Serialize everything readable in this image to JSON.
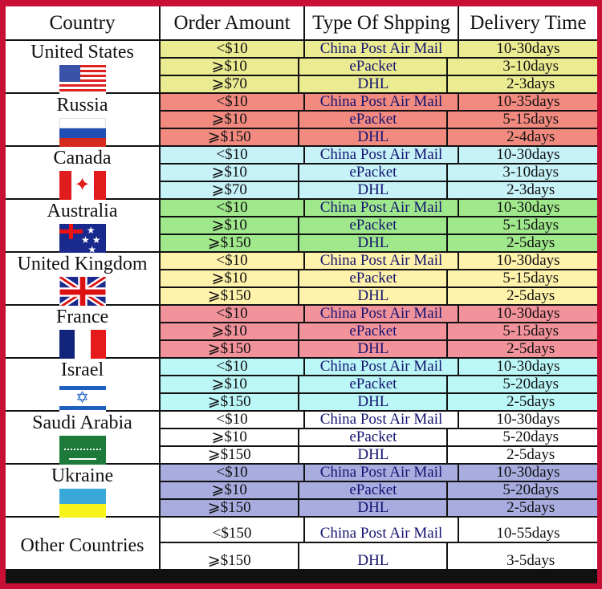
{
  "headers": [
    "Country",
    "Order Amount",
    "Type Of Shpping",
    "Delivery Time"
  ],
  "border_color": "#c80f36",
  "groups": [
    {
      "country": "United States",
      "flag": "us-flag",
      "color": "#ebeb92",
      "rows": [
        [
          "<$10",
          "China Post Air Mail",
          "10-30days"
        ],
        [
          "⩾$10",
          "ePacket",
          "3-10days"
        ],
        [
          "⩾$70",
          "DHL",
          "2-3days"
        ]
      ]
    },
    {
      "country": "Russia",
      "flag": "russia-flag",
      "color": "#f28a80",
      "rows": [
        [
          "<$10",
          "China Post Air Mail",
          "10-35days"
        ],
        [
          "⩾$10",
          "ePacket",
          "5-15days"
        ],
        [
          "⩾$150",
          "DHL",
          "2-4days"
        ]
      ]
    },
    {
      "country": "Canada",
      "flag": "canada-flag",
      "color": "#c6f2f8",
      "rows": [
        [
          "<$10",
          "China Post Air Mail",
          "10-30days"
        ],
        [
          "⩾$10",
          "ePacket",
          "3-10days"
        ],
        [
          "⩾$70",
          "DHL",
          "2-3days"
        ]
      ]
    },
    {
      "country": "Australia",
      "flag": "australia-flag",
      "color": "#a0e88c",
      "rows": [
        [
          "<$10",
          "China Post Air Mail",
          "10-30days"
        ],
        [
          "⩾$10",
          "ePacket",
          "5-15days"
        ],
        [
          "⩾$150",
          "DHL",
          "2-5days"
        ]
      ]
    },
    {
      "country": "United Kingdom",
      "flag": "uk-flag",
      "color": "#fff2aa",
      "rows": [
        [
          "<$10",
          "China Post Air Mail",
          "10-30days"
        ],
        [
          "⩾$10",
          "ePacket",
          "5-15days"
        ],
        [
          "⩾$150",
          "DHL",
          "2-5days"
        ]
      ]
    },
    {
      "country": "France",
      "flag": "france-flag",
      "color": "#f2929b",
      "rows": [
        [
          "<$10",
          "China Post Air Mail",
          "10-30days"
        ],
        [
          "⩾$10",
          "ePacket",
          "5-15days"
        ],
        [
          "⩾$150",
          "DHL",
          "2-5days"
        ]
      ]
    },
    {
      "country": "Israel",
      "flag": "israel-flag",
      "color": "#bbf7f7",
      "rows": [
        [
          "<$10",
          "China Post Air Mail",
          "10-30days"
        ],
        [
          "⩾$10",
          "ePacket",
          "5-20days"
        ],
        [
          "⩾$150",
          "DHL",
          "2-5days"
        ]
      ]
    },
    {
      "country": "Saudi Arabia",
      "flag": "saudi-arabia-flag",
      "color": "#ffffff",
      "rows": [
        [
          "<$10",
          "China Post Air Mail",
          "10-30days"
        ],
        [
          "⩾$10",
          "ePacket",
          "5-20days"
        ],
        [
          "⩾$150",
          "DHL",
          "2-5days"
        ]
      ]
    },
    {
      "country": "Ukraine",
      "flag": "ukraine-flag",
      "color": "#a8acdf",
      "rows": [
        [
          "<$10",
          "China Post Air Mail",
          "10-30days"
        ],
        [
          "⩾$10",
          "ePacket",
          "5-20days"
        ],
        [
          "⩾$150",
          "DHL",
          "2-5days"
        ]
      ]
    },
    {
      "country": "Other Countries",
      "flag": "",
      "color": "#ffffff",
      "rows": [
        [
          "<$150",
          "China Post Air Mail",
          "10-55days"
        ],
        [
          "⩾$150",
          "DHL",
          "3-5days"
        ]
      ]
    }
  ]
}
